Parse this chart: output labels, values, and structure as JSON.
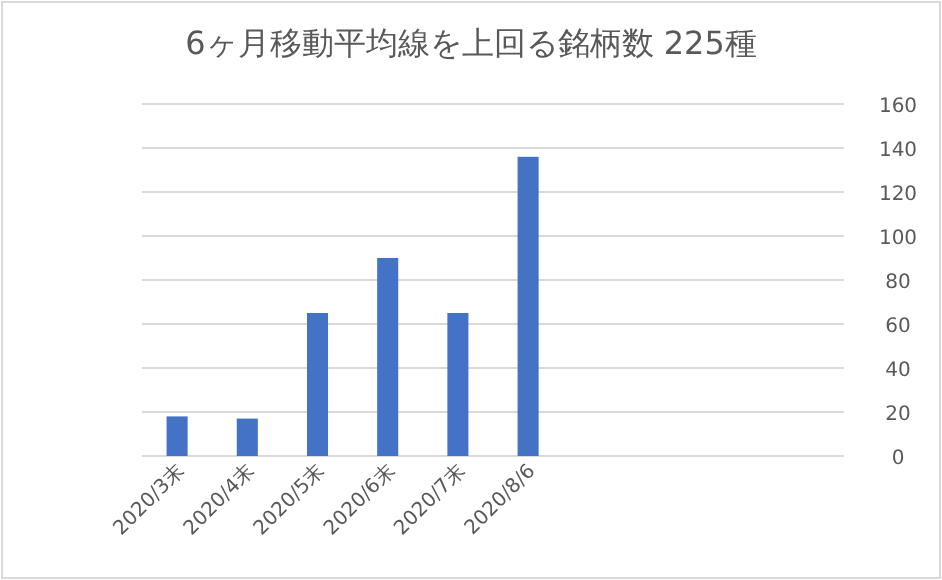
{
  "chart_data": {
    "type": "bar",
    "title": "6ヶ月移動平均線を上回る銘柄数 225種",
    "categories": [
      "2020/3末",
      "2020/4末",
      "2020/5末",
      "2020/6末",
      "2020/7末",
      "2020/8/6",
      null,
      null,
      null,
      null
    ],
    "series": [
      {
        "color": "#4472c4",
        "values": [
          18,
          17,
          65,
          90,
          65,
          136,
          null,
          null,
          null,
          null
        ]
      }
    ],
    "ylim": [
      0,
      160
    ],
    "yticks": [
      0,
      20,
      40,
      60,
      80,
      100,
      120,
      140,
      160
    ],
    "grid": "y"
  }
}
